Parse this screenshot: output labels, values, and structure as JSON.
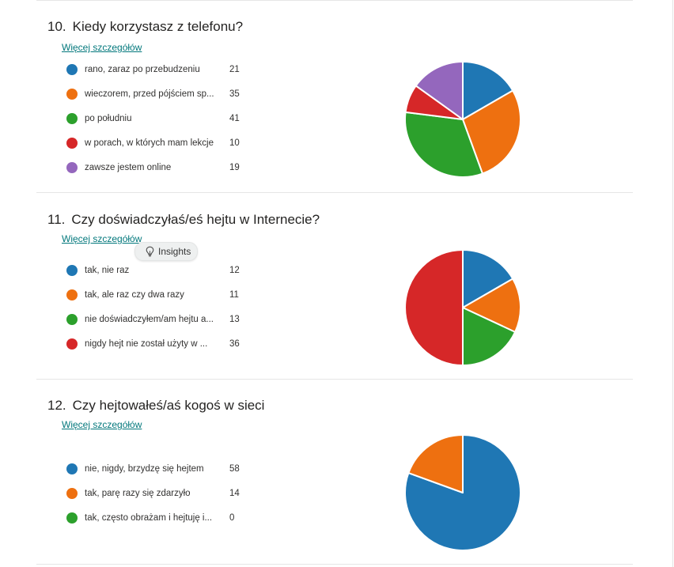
{
  "questions": [
    {
      "number": "10.",
      "title": "Kiedy korzystasz z telefonu?",
      "details_link": "Więcej szczegółów",
      "answers": [
        {
          "label": "rano, zaraz po przebudzeniu",
          "count": 21,
          "color": "#1f77b4"
        },
        {
          "label": "wieczorem, przed pójściem sp...",
          "count": 35,
          "color": "#ee7010"
        },
        {
          "label": "po południu",
          "count": 41,
          "color": "#2ca02c"
        },
        {
          "label": "w porach, w których mam lekcje",
          "count": 10,
          "color": "#d62728"
        },
        {
          "label": "zawsze jestem online",
          "count": 19,
          "color": "#9467bd"
        }
      ]
    },
    {
      "number": "11.",
      "title": "Czy doświadczyłaś/eś hejtu w Internecie?",
      "details_link": "Więcej szczegółów",
      "insights_label": "Insights",
      "insights_icon": "lightbulb-icon",
      "answers": [
        {
          "label": "tak, nie raz",
          "count": 12,
          "color": "#1f77b4"
        },
        {
          "label": "tak, ale raz czy dwa razy",
          "count": 11,
          "color": "#ee7010"
        },
        {
          "label": "nie doświadczyłem/am hejtu a...",
          "count": 13,
          "color": "#2ca02c"
        },
        {
          "label": "nigdy hejt nie został użyty w ...",
          "count": 36,
          "color": "#d62728"
        }
      ]
    },
    {
      "number": "12.",
      "title": "Czy hejtowałeś/aś kogoś w sieci",
      "details_link": "Więcej szczegółów",
      "answers": [
        {
          "label": "nie, nigdy, brzydzę się hejtem",
          "count": 58,
          "color": "#1f77b4"
        },
        {
          "label": "tak, parę razy się zdarzyło",
          "count": 14,
          "color": "#ee7010"
        },
        {
          "label": "tak, często obrażam i hejtuję i...",
          "count": 0,
          "color": "#2ca02c"
        }
      ]
    }
  ]
}
